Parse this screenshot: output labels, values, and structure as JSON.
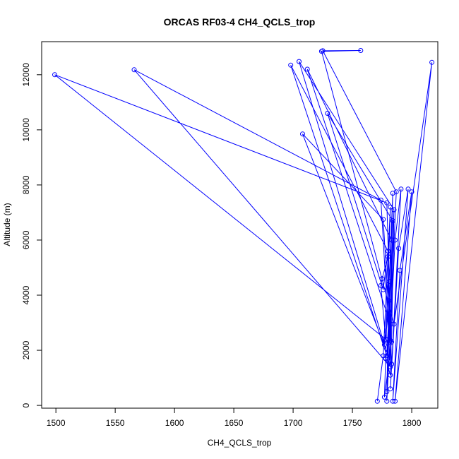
{
  "chart_data": {
    "type": "line",
    "title": "ORCAS RF03-4 CH4_QCLS_trop",
    "xlabel": "CH4_QCLS_trop",
    "ylabel": "Altitude (m)",
    "xlim": [
      1488,
      1822
    ],
    "ylim": [
      -100,
      13200
    ],
    "x_ticks": [
      1500,
      1550,
      1600,
      1650,
      1700,
      1750,
      1800
    ],
    "y_ticks": [
      0,
      2000,
      4000,
      6000,
      8000,
      10000,
      12000
    ],
    "grid": false,
    "legend": "none",
    "color": "#0000ff",
    "series": [
      {
        "points": [
          [
            1771,
            150
          ],
          [
            1776,
            1800
          ],
          [
            1782,
            7200
          ],
          [
            1777,
            300
          ],
          [
            1783,
            2300
          ],
          [
            1785,
            7100
          ],
          [
            1779,
            500
          ],
          [
            1781,
            4500
          ],
          [
            1784,
            7700
          ],
          [
            1779,
            150
          ],
          [
            1786,
            6000
          ],
          [
            1791,
            7850
          ],
          [
            1782,
            600
          ],
          [
            1789,
            5700
          ],
          [
            1797,
            7850
          ],
          [
            1784,
            150
          ],
          [
            1790,
            4900
          ],
          [
            1800,
            7750
          ],
          [
            1786,
            150
          ],
          [
            1817,
            12450
          ],
          [
            1785,
            2950
          ],
          [
            1724,
            12850
          ],
          [
            1757,
            12880
          ],
          [
            1725,
            12870
          ],
          [
            1787,
            7750
          ],
          [
            1782,
            2950
          ],
          [
            1712,
            12200
          ],
          [
            1783,
            6000
          ],
          [
            1777,
            2200
          ],
          [
            1705,
            12480
          ],
          [
            1785,
            7100
          ],
          [
            1779,
            1800
          ],
          [
            1698,
            12350
          ],
          [
            1780,
            5600
          ],
          [
            1776,
            4200
          ],
          [
            1729,
            10600
          ],
          [
            1784,
            6700
          ],
          [
            1782,
            1400
          ],
          [
            1566,
            12180
          ],
          [
            1774,
            7450
          ],
          [
            1781,
            2300
          ],
          [
            1499,
            12000
          ],
          [
            1779,
            7350
          ],
          [
            1783,
            1500
          ],
          [
            1708,
            9850
          ],
          [
            1776,
            6750
          ],
          [
            1782,
            2350
          ],
          [
            1781,
            3800
          ],
          [
            1778,
            2400
          ],
          [
            1774,
            4350
          ],
          [
            1775,
            4600
          ],
          [
            1780,
            5400
          ],
          [
            1782,
            1100
          ],
          [
            1778,
            1700
          ],
          [
            1783,
            1500
          ]
        ]
      }
    ]
  }
}
